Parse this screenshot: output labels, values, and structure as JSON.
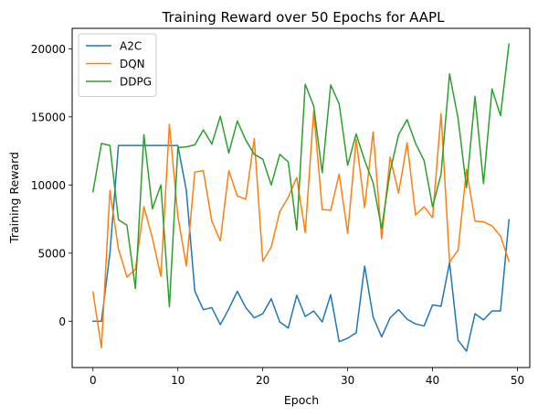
{
  "chart_data": {
    "type": "line",
    "title": "Training Reward over 50 Epochs for AAPL",
    "xlabel": "Epoch",
    "ylabel": "Training Reward",
    "xlim": [
      -2.45,
      51.45
    ],
    "ylim": [
      -3400,
      21500
    ],
    "xticks": [
      0,
      10,
      20,
      30,
      40,
      50
    ],
    "yticks": [
      0,
      5000,
      10000,
      15000,
      20000
    ],
    "legend_position": "top-left",
    "grid": false,
    "x": [
      0,
      1,
      2,
      3,
      4,
      5,
      6,
      7,
      8,
      9,
      10,
      11,
      12,
      13,
      14,
      15,
      16,
      17,
      18,
      19,
      20,
      21,
      22,
      23,
      24,
      25,
      26,
      27,
      28,
      29,
      30,
      31,
      32,
      33,
      34,
      35,
      36,
      37,
      38,
      39,
      40,
      41,
      42,
      43,
      44,
      45,
      46,
      47,
      48,
      49
    ],
    "series": [
      {
        "name": "A2C",
        "color": "#1f77b4",
        "values": [
          0,
          0,
          5000,
          12900,
          12900,
          12900,
          12900,
          12900,
          12900,
          12900,
          12900,
          9600,
          2200,
          850,
          1000,
          -250,
          900,
          2200,
          1000,
          250,
          550,
          1650,
          -50,
          -500,
          1900,
          350,
          750,
          -50,
          1950,
          -1500,
          -1250,
          -850,
          4050,
          300,
          -1150,
          250,
          850,
          150,
          -200,
          -350,
          1200,
          1100,
          4300,
          -1400,
          -2200,
          550,
          100,
          750,
          750,
          7450
        ]
      },
      {
        "name": "DQN",
        "color": "#ff7f0e",
        "values": [
          2150,
          -1950,
          9600,
          5300,
          3250,
          3800,
          8400,
          6100,
          3300,
          14450,
          7700,
          4050,
          10950,
          11050,
          7350,
          5900,
          11050,
          9200,
          8950,
          13400,
          4400,
          5450,
          8050,
          9100,
          10550,
          6500,
          15450,
          8200,
          8150,
          10800,
          6450,
          13350,
          8350,
          13900,
          6050,
          12050,
          9400,
          13100,
          7800,
          8400,
          7600,
          15250,
          4350,
          5200,
          11150,
          7350,
          7300,
          7000,
          6250,
          4400
        ]
      },
      {
        "name": "DDPG",
        "color": "#2ca02c",
        "values": [
          9500,
          13050,
          12900,
          7450,
          7050,
          2400,
          13700,
          8250,
          10000,
          1050,
          12750,
          12800,
          12950,
          14050,
          13000,
          15050,
          12350,
          14700,
          13300,
          12250,
          11900,
          10000,
          12250,
          11700,
          6700,
          17400,
          15800,
          10900,
          17350,
          15950,
          11450,
          13750,
          11800,
          10150,
          6800,
          11000,
          13700,
          14800,
          13050,
          11800,
          8400,
          10800,
          18150,
          14900,
          9800,
          16500,
          10100,
          17050,
          15100,
          20350
        ]
      }
    ]
  }
}
